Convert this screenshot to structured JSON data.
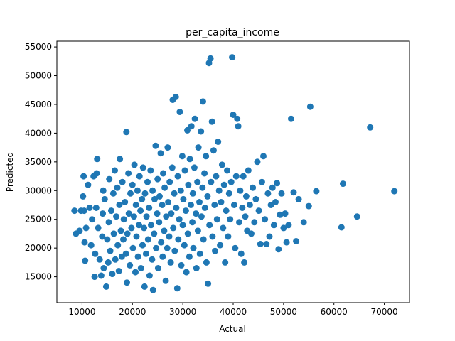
{
  "chart_data": {
    "type": "scatter",
    "title": "per_capita_income",
    "xlabel": "Actual",
    "ylabel": "Predicted",
    "xlim": [
      5000,
      75000
    ],
    "ylim": [
      10500,
      56000
    ],
    "xticks": [
      10000,
      20000,
      30000,
      40000,
      50000,
      60000,
      70000
    ],
    "yticks": [
      15000,
      20000,
      25000,
      30000,
      35000,
      40000,
      45000,
      50000,
      55000
    ],
    "grid": false,
    "marker_color": "#1f77b4",
    "points": [
      [
        8500,
        26500
      ],
      [
        8800,
        22500
      ],
      [
        9500,
        23000
      ],
      [
        9800,
        26500
      ],
      [
        10200,
        29000
      ],
      [
        10300,
        32500
      ],
      [
        10400,
        26500
      ],
      [
        10500,
        21000
      ],
      [
        10600,
        17800
      ],
      [
        10800,
        23500
      ],
      [
        11200,
        31000
      ],
      [
        11500,
        27000
      ],
      [
        11800,
        20500
      ],
      [
        12000,
        25000
      ],
      [
        12300,
        32500
      ],
      [
        12500,
        15000
      ],
      [
        12600,
        19000
      ],
      [
        12800,
        27000
      ],
      [
        12900,
        33000
      ],
      [
        13000,
        35500
      ],
      [
        13200,
        23500
      ],
      [
        13500,
        18000
      ],
      [
        13800,
        15200
      ],
      [
        14000,
        22000
      ],
      [
        14100,
        26000
      ],
      [
        14200,
        30000
      ],
      [
        14300,
        16500
      ],
      [
        14500,
        28500
      ],
      [
        14800,
        13300
      ],
      [
        15000,
        21500
      ],
      [
        15200,
        17500
      ],
      [
        15300,
        24500
      ],
      [
        15400,
        32000
      ],
      [
        15600,
        19500
      ],
      [
        15800,
        26500
      ],
      [
        16000,
        15500
      ],
      [
        16200,
        29500
      ],
      [
        16300,
        22500
      ],
      [
        16500,
        33500
      ],
      [
        16600,
        18000
      ],
      [
        16800,
        25500
      ],
      [
        17000,
        30500
      ],
      [
        17100,
        20500
      ],
      [
        17300,
        16000
      ],
      [
        17400,
        27500
      ],
      [
        17500,
        35500
      ],
      [
        17700,
        23000
      ],
      [
        17900,
        18500
      ],
      [
        18000,
        31500
      ],
      [
        18200,
        21500
      ],
      [
        18300,
        25000
      ],
      [
        18500,
        28000
      ],
      [
        18700,
        19000
      ],
      [
        18800,
        40200
      ],
      [
        18900,
        14000
      ],
      [
        19000,
        22500
      ],
      [
        19200,
        33000
      ],
      [
        19300,
        26000
      ],
      [
        19500,
        17000
      ],
      [
        19600,
        29500
      ],
      [
        19800,
        23500
      ],
      [
        20000,
        31000
      ],
      [
        20100,
        20000
      ],
      [
        20300,
        25500
      ],
      [
        20400,
        34500
      ],
      [
        20600,
        15800
      ],
      [
        20700,
        27500
      ],
      [
        20800,
        22000
      ],
      [
        21000,
        30000
      ],
      [
        21100,
        18500
      ],
      [
        21300,
        24000
      ],
      [
        21400,
        32500
      ],
      [
        21600,
        26500
      ],
      [
        21700,
        16500
      ],
      [
        21900,
        28500
      ],
      [
        22000,
        20500
      ],
      [
        22100,
        34000
      ],
      [
        22300,
        23500
      ],
      [
        22400,
        13300
      ],
      [
        22500,
        29500
      ],
      [
        22700,
        19000
      ],
      [
        22800,
        25500
      ],
      [
        23000,
        31500
      ],
      [
        23100,
        21500
      ],
      [
        23300,
        27000
      ],
      [
        23400,
        15200
      ],
      [
        23600,
        33500
      ],
      [
        23700,
        24000
      ],
      [
        23900,
        18000
      ],
      [
        24000,
        30000
      ],
      [
        24100,
        12700
      ],
      [
        24300,
        22500
      ],
      [
        24400,
        28500
      ],
      [
        24600,
        37800
      ],
      [
        24700,
        20000
      ],
      [
        24900,
        26000
      ],
      [
        25000,
        32000
      ],
      [
        25100,
        16500
      ],
      [
        25300,
        24500
      ],
      [
        25400,
        29000
      ],
      [
        25600,
        36500
      ],
      [
        25700,
        21000
      ],
      [
        25900,
        27500
      ],
      [
        26000,
        18500
      ],
      [
        26100,
        33000
      ],
      [
        26300,
        23000
      ],
      [
        26400,
        30500
      ],
      [
        26600,
        14300
      ],
      [
        26700,
        25500
      ],
      [
        26900,
        20000
      ],
      [
        27000,
        37500
      ],
      [
        27100,
        28000
      ],
      [
        27300,
        22000
      ],
      [
        27400,
        31500
      ],
      [
        27600,
        17500
      ],
      [
        27700,
        26000
      ],
      [
        27900,
        34000
      ],
      [
        28000,
        45800
      ],
      [
        28100,
        23500
      ],
      [
        28300,
        29500
      ],
      [
        28400,
        19500
      ],
      [
        28600,
        46300
      ],
      [
        28700,
        27000
      ],
      [
        28900,
        13000
      ],
      [
        29000,
        32500
      ],
      [
        29100,
        21500
      ],
      [
        29300,
        25000
      ],
      [
        29400,
        43700
      ],
      [
        29600,
        30000
      ],
      [
        29700,
        17000
      ],
      [
        29900,
        36000
      ],
      [
        30000,
        24000
      ],
      [
        30100,
        28500
      ],
      [
        30300,
        20500
      ],
      [
        30400,
        33500
      ],
      [
        30600,
        26500
      ],
      [
        30700,
        15800
      ],
      [
        30900,
        40500
      ],
      [
        31000,
        22500
      ],
      [
        31100,
        31000
      ],
      [
        31300,
        18500
      ],
      [
        31400,
        35500
      ],
      [
        31600,
        27500
      ],
      [
        31700,
        41200
      ],
      [
        31900,
        24500
      ],
      [
        32000,
        29500
      ],
      [
        32100,
        20000
      ],
      [
        32300,
        34000
      ],
      [
        32400,
        42500
      ],
      [
        32600,
        26000
      ],
      [
        32700,
        16500
      ],
      [
        32900,
        31500
      ],
      [
        33000,
        23000
      ],
      [
        33100,
        37500
      ],
      [
        33300,
        28000
      ],
      [
        33400,
        19000
      ],
      [
        33600,
        40300
      ],
      [
        33700,
        25500
      ],
      [
        33900,
        30500
      ],
      [
        34000,
        45500
      ],
      [
        34100,
        21500
      ],
      [
        34300,
        33000
      ],
      [
        34400,
        27000
      ],
      [
        34600,
        36000
      ],
      [
        34700,
        17500
      ],
      [
        34900,
        29000
      ],
      [
        35000,
        13800
      ],
      [
        35200,
        52200
      ],
      [
        35300,
        24000
      ],
      [
        35500,
        53000
      ],
      [
        35600,
        31500
      ],
      [
        35800,
        42000
      ],
      [
        35900,
        22000
      ],
      [
        36100,
        37000
      ],
      [
        36300,
        27500
      ],
      [
        36400,
        19500
      ],
      [
        36600,
        32500
      ],
      [
        36800,
        25000
      ],
      [
        37000,
        38500
      ],
      [
        37200,
        30000
      ],
      [
        37400,
        20500
      ],
      [
        37600,
        28000
      ],
      [
        37800,
        34500
      ],
      [
        38000,
        23500
      ],
      [
        38200,
        31000
      ],
      [
        38400,
        17500
      ],
      [
        38600,
        26500
      ],
      [
        38800,
        33500
      ],
      [
        39000,
        22000
      ],
      [
        39200,
        29500
      ],
      [
        39400,
        25000
      ],
      [
        39600,
        31500
      ],
      [
        39800,
        53200
      ],
      [
        40000,
        43200
      ],
      [
        40200,
        27500
      ],
      [
        40400,
        20000
      ],
      [
        40600,
        32500
      ],
      [
        40800,
        42500
      ],
      [
        41000,
        41200
      ],
      [
        41200,
        24500
      ],
      [
        41400,
        30000
      ],
      [
        41600,
        19000
      ],
      [
        41800,
        27000
      ],
      [
        42000,
        32500
      ],
      [
        42200,
        17500
      ],
      [
        42400,
        25500
      ],
      [
        42600,
        29000
      ],
      [
        42800,
        23000
      ],
      [
        43000,
        33500
      ],
      [
        43300,
        27500
      ],
      [
        43600,
        22500
      ],
      [
        43900,
        30500
      ],
      [
        44200,
        24500
      ],
      [
        44500,
        28500
      ],
      [
        44800,
        35000
      ],
      [
        45100,
        26500
      ],
      [
        45400,
        20700
      ],
      [
        45700,
        31500
      ],
      [
        46000,
        36000
      ],
      [
        46300,
        25000
      ],
      [
        46600,
        20700
      ],
      [
        46900,
        29500
      ],
      [
        47200,
        22000
      ],
      [
        47500,
        27500
      ],
      [
        47800,
        30500
      ],
      [
        48100,
        24000
      ],
      [
        48400,
        28000
      ],
      [
        48700,
        31300
      ],
      [
        49000,
        19800
      ],
      [
        49300,
        25800
      ],
      [
        49600,
        29500
      ],
      [
        50000,
        23500
      ],
      [
        50300,
        26000
      ],
      [
        50600,
        21000
      ],
      [
        51000,
        24000
      ],
      [
        51500,
        42500
      ],
      [
        52000,
        29700
      ],
      [
        52500,
        21200
      ],
      [
        53000,
        28500
      ],
      [
        54000,
        24500
      ],
      [
        55000,
        27300
      ],
      [
        55300,
        44600
      ],
      [
        56500,
        29900
      ],
      [
        61500,
        23600
      ],
      [
        61800,
        31200
      ],
      [
        64600,
        25500
      ],
      [
        67200,
        41000
      ],
      [
        72000,
        29900
      ]
    ]
  }
}
